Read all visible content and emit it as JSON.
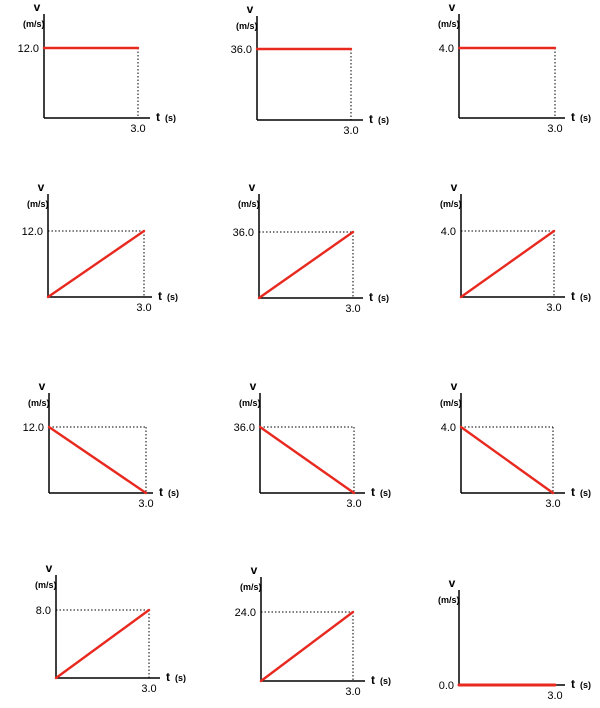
{
  "line_color": "#e8291f",
  "axis_color": "#000000",
  "chart_data": [
    {
      "type": "line",
      "x": [
        0,
        3.0
      ],
      "y": [
        12.0,
        12.0
      ],
      "ylabel": "v",
      "yunit": "(m/s)",
      "xlabel": "t",
      "xunit": "(s)",
      "y_tick": "12.0",
      "x_tick": "3.0",
      "ylim": [
        0,
        12.0
      ],
      "xlim": [
        0,
        3.0
      ]
    },
    {
      "type": "line",
      "x": [
        0,
        3.0
      ],
      "y": [
        36.0,
        36.0
      ],
      "ylabel": "v",
      "yunit": "(m/s)",
      "xlabel": "t",
      "xunit": "(s)",
      "y_tick": "36.0",
      "x_tick": "3.0",
      "ylim": [
        0,
        36.0
      ],
      "xlim": [
        0,
        3.0
      ]
    },
    {
      "type": "line",
      "x": [
        0,
        3.0
      ],
      "y": [
        4.0,
        4.0
      ],
      "ylabel": "v",
      "yunit": "(m/s)",
      "xlabel": "t",
      "xunit": "(s)",
      "y_tick": "4.0",
      "x_tick": "3.0",
      "ylim": [
        0,
        4.0
      ],
      "xlim": [
        0,
        3.0
      ]
    },
    {
      "type": "line",
      "x": [
        0,
        3.0
      ],
      "y": [
        0,
        12.0
      ],
      "ylabel": "v",
      "yunit": "(m/s)",
      "xlabel": "t",
      "xunit": "(s)",
      "y_tick": "12.0",
      "x_tick": "3.0",
      "ylim": [
        0,
        12.0
      ],
      "xlim": [
        0,
        3.0
      ]
    },
    {
      "type": "line",
      "x": [
        0,
        3.0
      ],
      "y": [
        0,
        36.0
      ],
      "ylabel": "v",
      "yunit": "(m/s)",
      "xlabel": "t",
      "xunit": "(s)",
      "y_tick": "36.0",
      "x_tick": "3.0",
      "ylim": [
        0,
        36.0
      ],
      "xlim": [
        0,
        3.0
      ]
    },
    {
      "type": "line",
      "x": [
        0,
        3.0
      ],
      "y": [
        0,
        4.0
      ],
      "ylabel": "v",
      "yunit": "(m/s)",
      "xlabel": "t",
      "xunit": "(s)",
      "y_tick": "4.0",
      "x_tick": "3.0",
      "ylim": [
        0,
        4.0
      ],
      "xlim": [
        0,
        3.0
      ]
    },
    {
      "type": "line",
      "x": [
        0,
        3.0
      ],
      "y": [
        12.0,
        0
      ],
      "ylabel": "v",
      "yunit": "(m/s)",
      "xlabel": "t",
      "xunit": "(s)",
      "y_tick": "12.0",
      "x_tick": "3.0",
      "ylim": [
        0,
        12.0
      ],
      "xlim": [
        0,
        3.0
      ]
    },
    {
      "type": "line",
      "x": [
        0,
        3.0
      ],
      "y": [
        36.0,
        0
      ],
      "ylabel": "v",
      "yunit": "(m/s)",
      "xlabel": "t",
      "xunit": "(s)",
      "y_tick": "36.0",
      "x_tick": "3.0",
      "ylim": [
        0,
        36.0
      ],
      "xlim": [
        0,
        3.0
      ]
    },
    {
      "type": "line",
      "x": [
        0,
        3.0
      ],
      "y": [
        4.0,
        0
      ],
      "ylabel": "v",
      "yunit": "(m/s)",
      "xlabel": "t",
      "xunit": "(s)",
      "y_tick": "4.0",
      "x_tick": "3.0",
      "ylim": [
        0,
        4.0
      ],
      "xlim": [
        0,
        3.0
      ]
    },
    {
      "type": "line",
      "x": [
        0,
        3.0
      ],
      "y": [
        0,
        8.0
      ],
      "ylabel": "v",
      "yunit": "(m/s)",
      "xlabel": "t",
      "xunit": "(s)",
      "y_tick": "8.0",
      "x_tick": "3.0",
      "ylim": [
        0,
        8.0
      ],
      "xlim": [
        0,
        3.0
      ]
    },
    {
      "type": "line",
      "x": [
        0,
        3.0
      ],
      "y": [
        0,
        24.0
      ],
      "ylabel": "v",
      "yunit": "(m/s)",
      "xlabel": "t",
      "xunit": "(s)",
      "y_tick": "24.0",
      "x_tick": "3.0",
      "ylim": [
        0,
        24.0
      ],
      "xlim": [
        0,
        3.0
      ]
    },
    {
      "type": "line",
      "x": [
        0,
        3.0
      ],
      "y": [
        0.0,
        0.0
      ],
      "ylabel": "v",
      "yunit": "(m/s)",
      "xlabel": "t",
      "xunit": "(s)",
      "y_tick": "0.0",
      "x_tick": "3.0",
      "ylim": [
        0,
        1
      ],
      "xlim": [
        0,
        3.0
      ],
      "zero_tick": true
    }
  ]
}
